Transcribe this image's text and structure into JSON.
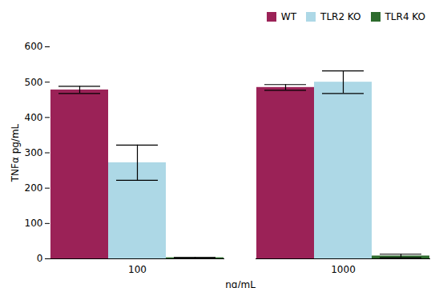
{
  "chart_data": {
    "type": "bar",
    "categories": [
      "100",
      "1000"
    ],
    "series": [
      {
        "name": "WT",
        "color": "#9B2257",
        "values": [
          478,
          485
        ],
        "errors": [
          10,
          8
        ]
      },
      {
        "name": "TLR2 KO",
        "color": "#ADD8E6",
        "values": [
          272,
          500
        ],
        "errors": [
          50,
          32
        ]
      },
      {
        "name": "TLR4 KO",
        "color": "#2D6B2D",
        "values": [
          3,
          8
        ],
        "errors": [
          1,
          5
        ]
      }
    ],
    "xlabel": "ng/mL",
    "ylabel": "TNFα pg/mL",
    "ylim": [
      0,
      600
    ],
    "yticks": [
      0,
      100,
      200,
      300,
      400,
      500,
      600
    ],
    "grid": false,
    "legend": "upper right"
  }
}
